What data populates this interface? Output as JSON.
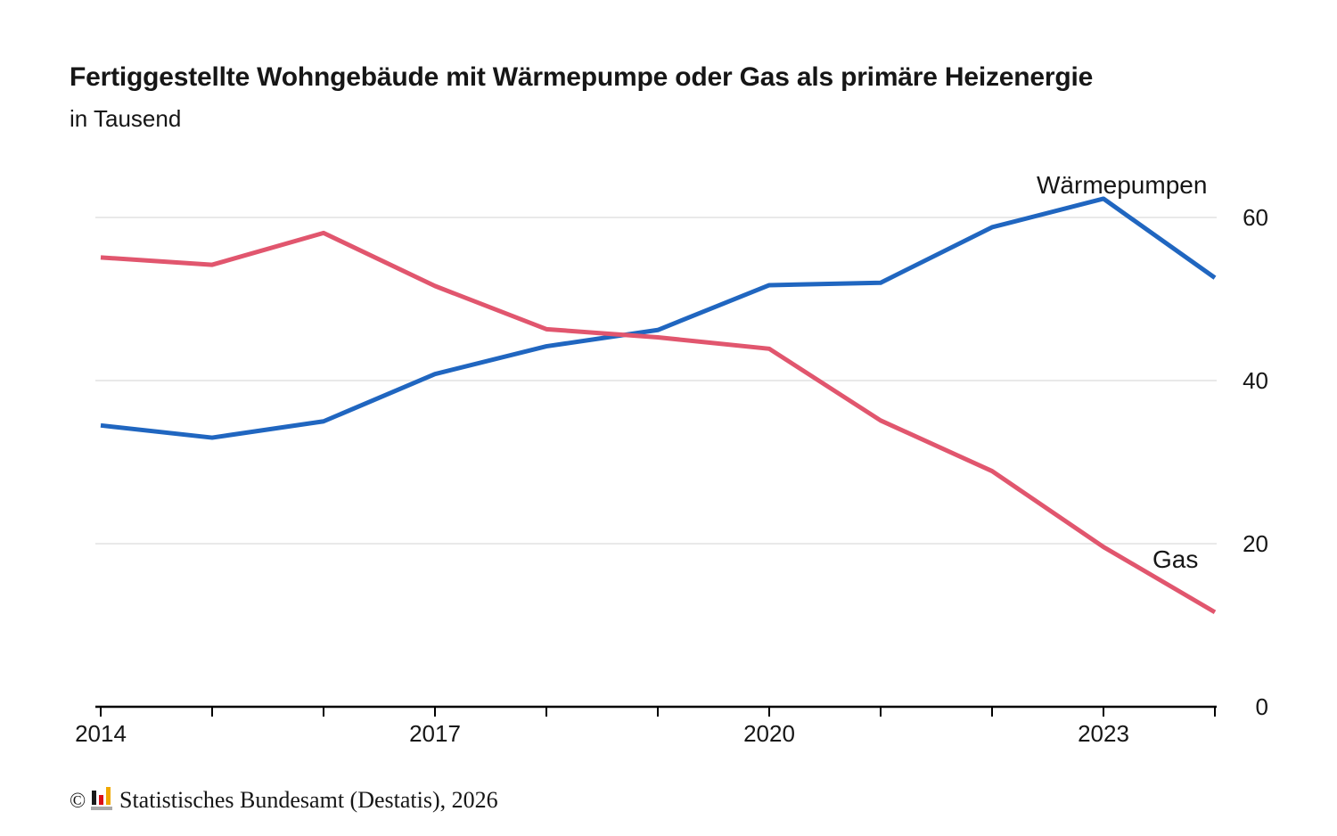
{
  "header": {
    "title": "Fertiggestellte Wohngebäude mit Wärmepumpe oder Gas als primäre Heizenergie",
    "subtitle": "in Tausend"
  },
  "chart_data": {
    "type": "line",
    "title": "Fertiggestellte Wohngebäude mit Wärmepumpe oder Gas als primäre Heizenergie",
    "unit_label": "in Tausend",
    "x": [
      2014,
      2015,
      2016,
      2017,
      2018,
      2019,
      2020,
      2021,
      2022,
      2023,
      2024
    ],
    "series": [
      {
        "name": "Wärmepumpen",
        "color": "#2066c0",
        "values": [
          34.5,
          33.0,
          35.0,
          40.8,
          44.2,
          46.2,
          51.7,
          52.0,
          58.8,
          62.3,
          52.6
        ]
      },
      {
        "name": "Gas",
        "color": "#e1566e",
        "values": [
          55.1,
          54.2,
          58.1,
          51.6,
          46.3,
          45.3,
          43.9,
          35.1,
          28.9,
          19.6,
          11.6
        ]
      }
    ],
    "x_tick_labels": [
      2014,
      2017,
      2020,
      2023
    ],
    "y_ticks": [
      0,
      20,
      40,
      60
    ],
    "xlim": [
      2014,
      2024
    ],
    "ylim": [
      0,
      65
    ],
    "grid": "horizontal-light",
    "y_axis_side": "right",
    "legend": "inline-series-labels"
  },
  "footer": {
    "copyright_symbol": "©",
    "logo_icon": "destatis-bar-chart-icon",
    "logo_colors": {
      "black": "#1a1a1a",
      "red": "#dc0f15",
      "gold": "#f0a800",
      "base": "#a9a9a9"
    },
    "source_text": "Statistisches Bundesamt (Destatis), 2026"
  }
}
